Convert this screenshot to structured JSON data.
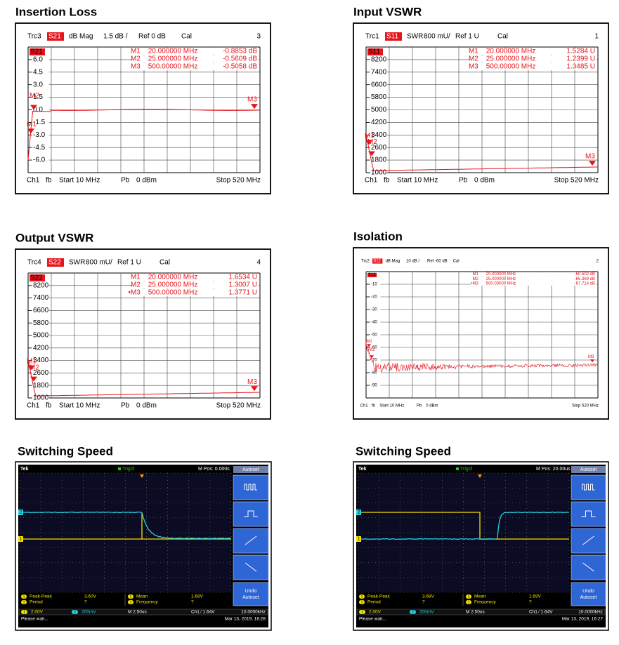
{
  "panels": [
    {
      "title": "Insertion Loss",
      "trace": "Trc3",
      "param": "S21",
      "format": "dB Mag",
      "scale": "1.5 dB /",
      "ref": "Ref 0 dB",
      "cal": "Cal",
      "number": "3",
      "markers": [
        {
          "name": "M1",
          "freq": "20.000000 MHz",
          "value": "-0.8853 dB"
        },
        {
          "name": "M2",
          "freq": "25.000000 MHz",
          "value": "-0.5609 dB"
        },
        {
          "name": "M3",
          "freq": "500.00000 MHz",
          "value": "-0.5058 dB"
        }
      ],
      "axis_labels": [
        "6.0",
        "4.5",
        "3.0",
        "1.5",
        "0.0",
        "-1.5",
        "-3.0",
        "-4.5",
        "-6.0"
      ],
      "tags": [
        "M1",
        "M2",
        "M3"
      ],
      "footer": {
        "channel": "Ch1",
        "mode": "fb",
        "start": "Start 10 MHz",
        "power": "Pb",
        "level": "0 dBm",
        "stop": "Stop 520 MHz"
      }
    },
    {
      "title": "Input VSWR",
      "trace": "Trc1",
      "param": "S11",
      "format": "SWR",
      "scale": "800 mU/",
      "ref": "Ref 1 U",
      "cal": "Cal",
      "number": "1",
      "markers": [
        {
          "name": "M1",
          "freq": "20.000000 MHz",
          "value": "1.5284 U"
        },
        {
          "name": "M2",
          "freq": "25.000000 MHz",
          "value": "1.2399 U"
        },
        {
          "name": "M3",
          "freq": "500.00000 MHz",
          "value": "1.3485 U"
        }
      ],
      "axis_labels": [
        "8200",
        "7400",
        "6600",
        "5800",
        "5000",
        "4200",
        "3400",
        "2600",
        "1800",
        "1000"
      ],
      "tags": [
        "M1",
        "M2",
        "M3"
      ],
      "footer": {
        "channel": "Ch1",
        "mode": "fb",
        "start": "Start 10 MHz",
        "power": "Pb",
        "level": "0 dBm",
        "stop": "Stop 520 MHz"
      }
    },
    {
      "title": "Output VSWR",
      "trace": "Trc4",
      "param": "S22",
      "format": "SWR",
      "scale": "800 mU/",
      "ref": "Ref 1 U",
      "cal": "Cal",
      "number": "4",
      "markers": [
        {
          "name": "M1",
          "freq": "20.000000 MHz",
          "value": "1.6534 U"
        },
        {
          "name": "M2",
          "freq": "25.000000 MHz",
          "value": "1.3007 U"
        },
        {
          "name": "•M3",
          "freq": "500.00000 MHz",
          "value": "1.3771 U"
        }
      ],
      "axis_labels": [
        "8200",
        "7400",
        "6600",
        "5800",
        "5000",
        "4200",
        "3400",
        "2600",
        "1800",
        "1000"
      ],
      "tags": [
        "M1",
        "M2",
        "M3"
      ],
      "footer": {
        "channel": "Ch1",
        "mode": "fb",
        "start": "Start 10 MHz",
        "power": "Pb",
        "level": "0 dBm",
        "stop": "Stop 520 MHz"
      }
    },
    {
      "title": "Isolation",
      "trace": "Trc2",
      "param": "S12",
      "format": "dB Mag",
      "scale": "10 dB /",
      "ref": "Ref -60 dB",
      "cal": "Cal",
      "number": "2",
      "markers": [
        {
          "name": "M1",
          "freq": "20.000000 MHz",
          "value": "-60.502 dB"
        },
        {
          "name": "M2",
          "freq": "25.000000 MHz",
          "value": "-65.369 dB"
        },
        {
          "name": "•M3",
          "freq": "500.00000 MHz",
          "value": "-67.714 dB"
        }
      ],
      "axis_labels": [
        "-10",
        "-20",
        "-30",
        "-40",
        "-50",
        "-60",
        "-70",
        "-80",
        "-90"
      ],
      "tags": [
        "M1",
        "M2",
        "M3"
      ],
      "footer": {
        "channel": "Ch1",
        "mode": "fb",
        "start": "Start 10 MHz",
        "power": "Pb",
        "level": "0 dBm",
        "stop": "Stop 520 MHz"
      }
    },
    {
      "title": "Switching Speed",
      "brand": "Tek",
      "trigger": "Trig'd",
      "position": "M Pos: 0.000s",
      "menu_title": "Autoset",
      "undo": [
        "Undo",
        "Autoset"
      ],
      "measurements": [
        {
          "channel": "1",
          "label": "Peak-Peak",
          "value": "3.60V"
        },
        {
          "channel": "1",
          "label": "Period",
          "value": "?"
        },
        {
          "channel": "1",
          "label": "Mean",
          "value": "1.68V"
        },
        {
          "channel": "1",
          "label": "Frequency",
          "value": "?"
        }
      ],
      "channels": [
        {
          "id": "1",
          "scale": "2.00V"
        },
        {
          "id": "2",
          "scale": "200mV"
        }
      ],
      "timebase": "M 2.50us",
      "trigger_level": "Ch1 ⁄ 1.64V",
      "frequency": "10.0000kHz",
      "status": "Please wait...",
      "date": "Mar 13, 2019, 16:28"
    },
    {
      "title": "Switching Speed",
      "brand": "Tek",
      "trigger": "Trig'd",
      "position": "M Pos: 20.00us",
      "menu_title": "Autoset",
      "undo": [
        "Undo",
        "Autoset"
      ],
      "measurements": [
        {
          "channel": "1",
          "label": "Peak-Peak",
          "value": "3.68V"
        },
        {
          "channel": "1",
          "label": "Period",
          "value": "?"
        },
        {
          "channel": "1",
          "label": "Mean",
          "value": "1.69V"
        },
        {
          "channel": "1",
          "label": "Frequency",
          "value": "?"
        }
      ],
      "channels": [
        {
          "id": "1",
          "scale": "2.00V"
        },
        {
          "id": "2",
          "scale": "200mV"
        }
      ],
      "timebase": "M 2.50us",
      "trigger_level": "Ch1 ⁄ 1.64V",
      "frequency": "10.0000kHz",
      "status": "Please wait...",
      "date": "Mar 13, 2019, 16:27"
    }
  ]
}
